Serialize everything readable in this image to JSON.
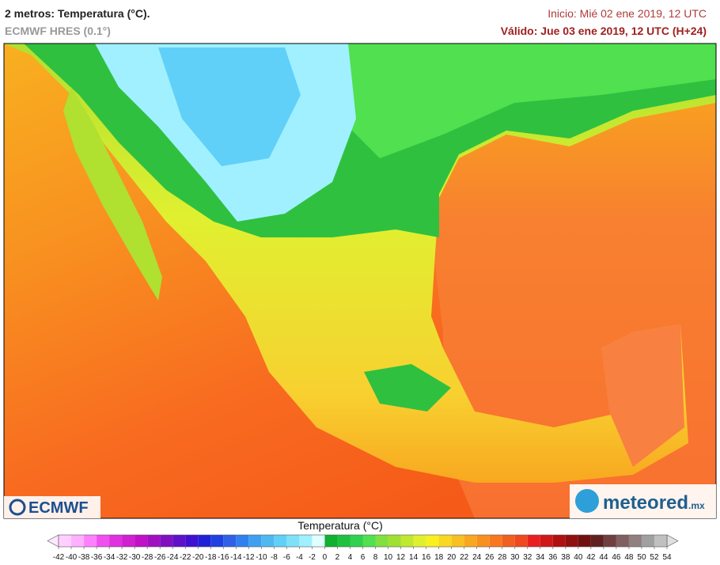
{
  "header": {
    "title": "2 metros: Temperatura (°C).",
    "model": "ECMWF HRES (0.1°)",
    "init": "Inicio: Mié 02 ene 2019, 12 UTC",
    "valid": "Válido: Jue 03 ene 2019, 12 UTC (H+24)"
  },
  "logos": {
    "left": "ECMWF",
    "right": "meteored",
    "right_suffix": ".mx"
  },
  "colorbar": {
    "title": "Temperatura (°C)",
    "ticks": [
      -42,
      -40,
      -38,
      -36,
      -34,
      -32,
      -30,
      -28,
      -26,
      -24,
      -22,
      -20,
      -18,
      -16,
      -14,
      -12,
      -10,
      -8,
      -6,
      -4,
      -2,
      0,
      2,
      4,
      6,
      8,
      10,
      12,
      14,
      16,
      18,
      20,
      22,
      24,
      26,
      28,
      30,
      32,
      34,
      36,
      38,
      40,
      42,
      44,
      46,
      48,
      50,
      52,
      54
    ],
    "colors": [
      "#ffd0ff",
      "#ffb0ff",
      "#ff80ff",
      "#f050f0",
      "#e030e0",
      "#d020d0",
      "#c010c8",
      "#a010c0",
      "#8010c0",
      "#6010c8",
      "#4010d0",
      "#2020d8",
      "#2040e0",
      "#3060e8",
      "#3080f0",
      "#40a0f0",
      "#50b8f0",
      "#60d0f8",
      "#80e0f8",
      "#a0f0ff",
      "#e0ffff",
      "#10b030",
      "#20c040",
      "#30d050",
      "#50e050",
      "#80e040",
      "#a0e030",
      "#c0e830",
      "#e0f030",
      "#f8f020",
      "#f8d820",
      "#f8c020",
      "#f8a820",
      "#f89020",
      "#f87820",
      "#f06020",
      "#f04820",
      "#e82020",
      "#d01818",
      "#b01010",
      "#901010",
      "#701010",
      "#602020",
      "#704040",
      "#806060",
      "#908080",
      "#a0a0a0",
      "#c0c0c0"
    ]
  }
}
